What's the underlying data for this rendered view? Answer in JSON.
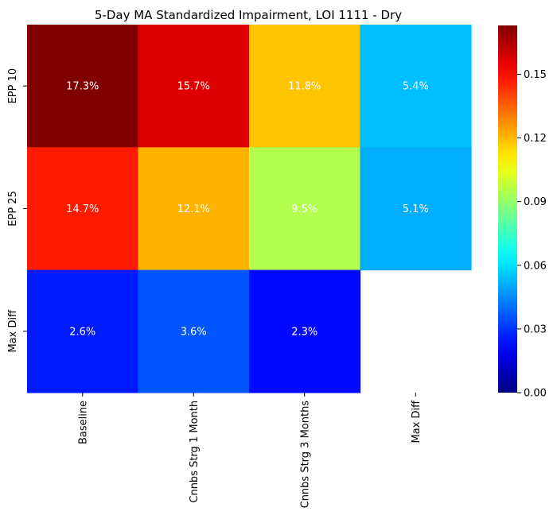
{
  "chart_data": {
    "type": "heatmap",
    "title": "5-Day MA Standardized Impairment, LOI 1111 - Dry",
    "xlabel": "",
    "ylabel": "",
    "x_categories": [
      "Baseline",
      "Cnnbs Strg 1 Month",
      "Cnnbs Strg 3 Months",
      "Max Diff"
    ],
    "y_categories": [
      "EPP 10",
      "EPP 25",
      "Max Diff"
    ],
    "values": [
      [
        0.173,
        0.157,
        0.118,
        0.054
      ],
      [
        0.147,
        0.121,
        0.095,
        0.051
      ],
      [
        0.026,
        0.036,
        0.023,
        null
      ]
    ],
    "cell_labels": [
      [
        "17.3%",
        "15.7%",
        "11.8%",
        "5.4%"
      ],
      [
        "14.7%",
        "12.1%",
        "9.5%",
        "5.1%"
      ],
      [
        "2.6%",
        "3.6%",
        "2.3%",
        ""
      ]
    ],
    "colormap": "jet",
    "colorbar": {
      "vmin": 0.0,
      "vmax": 0.173,
      "ticks": [
        0.0,
        0.03,
        0.06,
        0.09,
        0.12,
        0.15
      ],
      "tick_labels": [
        "0.00",
        "0.03",
        "0.06",
        "0.09",
        "0.12",
        "0.15"
      ]
    },
    "cell_label_color": "#ffffff",
    "legend": "colorbar right"
  }
}
